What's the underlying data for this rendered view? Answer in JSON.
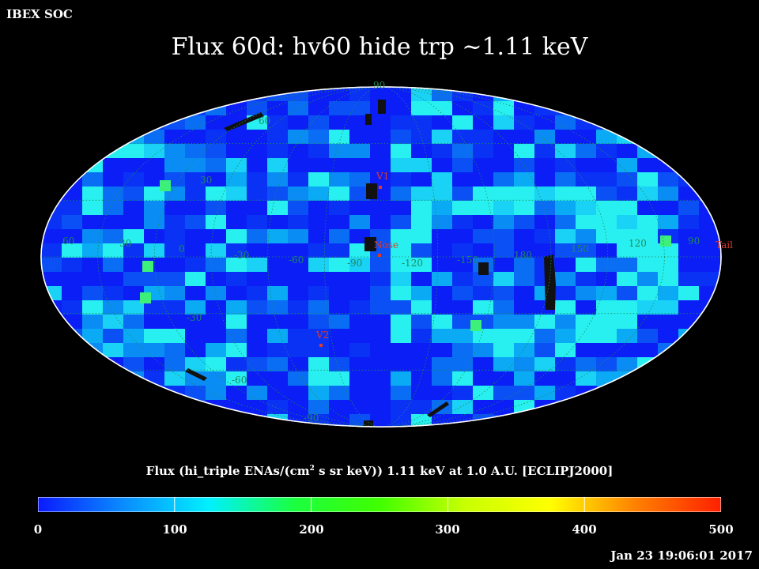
{
  "header": {
    "corner_label": "IBEX SOC",
    "title": "Flux   60d: hv60 hide trp ~1.11 keV"
  },
  "map": {
    "projection": "aitoff",
    "lon_labels": [
      "60",
      "30",
      "0",
      "-30",
      "-60",
      "-90",
      "-120",
      "-150",
      "180",
      "150",
      "120",
      "90"
    ],
    "lat_labels": [
      "90",
      "60",
      "30",
      "-30",
      "-60",
      "-90"
    ],
    "markers": [
      {
        "name": "V1",
        "color": "#e03a28"
      },
      {
        "name": "Nose",
        "color": "#e03a28"
      },
      {
        "name": "V2",
        "color": "#e03a28"
      },
      {
        "name": "Tail",
        "color": "#e03a28"
      }
    ],
    "grid_color": "#1f8a5a"
  },
  "colorbar": {
    "label_pre": "Flux (hi_triple ENAs/(cm",
    "label_sup": "2",
    "label_post": " s sr keV))  1.11 keV at 1.0 A.U. [ECLIPJ2000]",
    "ticks": [
      "0",
      "100",
      "200",
      "300",
      "400",
      "500"
    ],
    "min": 0,
    "max": 500,
    "colors": [
      "#0a1aff",
      "#0a8cff",
      "#00f0ff",
      "#1aff40",
      "#40ff00",
      "#c8ff00",
      "#ffff00",
      "#ff8000",
      "#ff2000"
    ]
  },
  "footer": {
    "timestamp": "Jan 23 19:06:01 2017"
  }
}
